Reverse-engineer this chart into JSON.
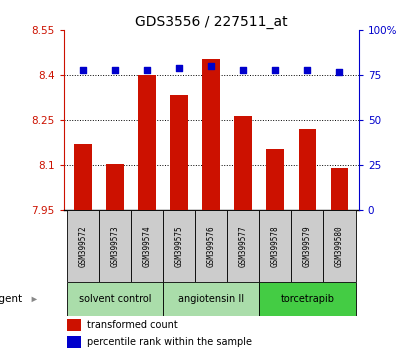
{
  "title": "GDS3556 / 227511_at",
  "samples": [
    "GSM399572",
    "GSM399573",
    "GSM399574",
    "GSM399575",
    "GSM399576",
    "GSM399577",
    "GSM399578",
    "GSM399579",
    "GSM399580"
  ],
  "red_values": [
    8.17,
    8.105,
    8.4,
    8.335,
    8.455,
    8.265,
    8.155,
    8.22,
    8.09
  ],
  "blue_values": [
    78,
    78,
    78,
    79,
    80,
    78,
    78,
    78,
    77
  ],
  "y_min": 7.95,
  "y_max": 8.55,
  "y_ticks": [
    7.95,
    8.1,
    8.25,
    8.4,
    8.55
  ],
  "y_tick_labels": [
    "7.95",
    "8.1",
    "8.25",
    "8.4",
    "8.55"
  ],
  "y2_ticks": [
    0,
    25,
    50,
    75,
    100
  ],
  "y2_tick_labels": [
    "0",
    "25",
    "50",
    "75",
    "100%"
  ],
  "group_borders": [
    -0.5,
    2.5,
    5.5,
    8.5
  ],
  "group_labels": [
    "solvent control",
    "angiotensin II",
    "torcetrapib"
  ],
  "group_colors": [
    "#aaddaa",
    "#aaddaa",
    "#44cc44"
  ],
  "bar_color": "#cc1100",
  "dot_color": "#0000cc",
  "bg_color": "#ffffff",
  "sample_bg": "#cccccc",
  "agent_label": "agent",
  "legend_red": "transformed count",
  "legend_blue": "percentile rank within the sample",
  "grid_lines": [
    8.1,
    8.25,
    8.4
  ]
}
